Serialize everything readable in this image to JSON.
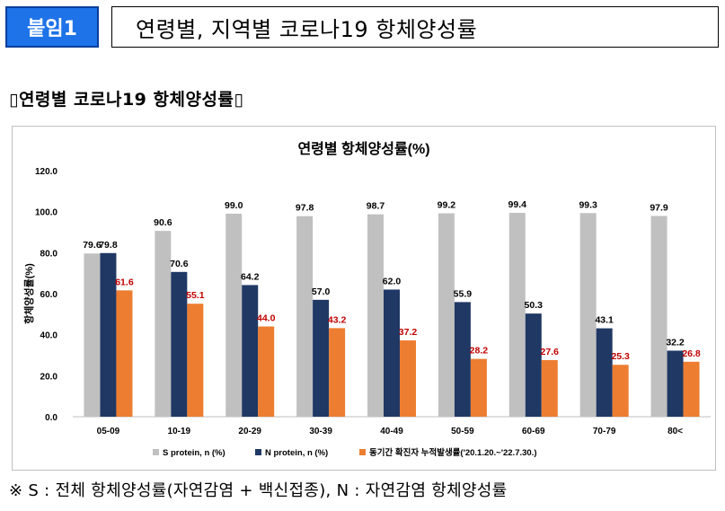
{
  "header": {
    "badge_label": "붙임1",
    "title": "연령별, 지역별 코로나19 항체양성률"
  },
  "section": {
    "subtitle": "▯연령별 코로나19 항체양성률▯"
  },
  "footnote": "※ S : 전체 항체양성률(자연감염 + 백신접종),   N : 자연감염 항체양성률",
  "colors": {
    "s_protein": "#c0c0c0",
    "n_protein": "#203864",
    "cumulative": "#ed7d31",
    "cumulative_label": "#c00000"
  },
  "chart_data": {
    "type": "bar",
    "title": "연령별 항체양성률(%)",
    "ylabel": "항체양성률(%)",
    "xlabel": "",
    "ylim": [
      0,
      120
    ],
    "yticks": [
      "0.0",
      "20.0",
      "40.0",
      "60.0",
      "80.0",
      "100.0",
      "120.0"
    ],
    "categories": [
      "05-09",
      "10-19",
      "20-29",
      "30-39",
      "40-49",
      "50-59",
      "60-69",
      "70-79",
      "80<"
    ],
    "series": [
      {
        "name": "S protein, n (%)",
        "values": [
          79.6,
          90.6,
          99.0,
          97.8,
          98.7,
          99.2,
          99.4,
          99.3,
          97.9
        ],
        "labels": [
          "79.6",
          "90.6",
          "99.0",
          "97.8",
          "98.7",
          "99.2",
          "99.4",
          "99.3",
          "97.9"
        ]
      },
      {
        "name": "N protein, n (%)",
        "values": [
          79.8,
          70.6,
          64.2,
          57.0,
          62.0,
          55.9,
          50.3,
          43.1,
          32.2
        ],
        "labels": [
          "79.8",
          "70.6",
          "64.2",
          "57.0",
          "62.0",
          "55.9",
          "50.3",
          "43.1",
          "32.2"
        ]
      },
      {
        "name": "동기간 확진자 누적발생률('20.1.20.~'22.7.30.)",
        "values": [
          61.6,
          55.1,
          44.0,
          43.2,
          37.2,
          28.2,
          27.6,
          25.3,
          26.8
        ],
        "labels": [
          "61.6",
          "55.1",
          "44.0",
          "43.2",
          "37.2",
          "28.2",
          "27.6",
          "25.3",
          "26.8"
        ]
      }
    ],
    "legend_position": "bottom",
    "grid": false
  }
}
